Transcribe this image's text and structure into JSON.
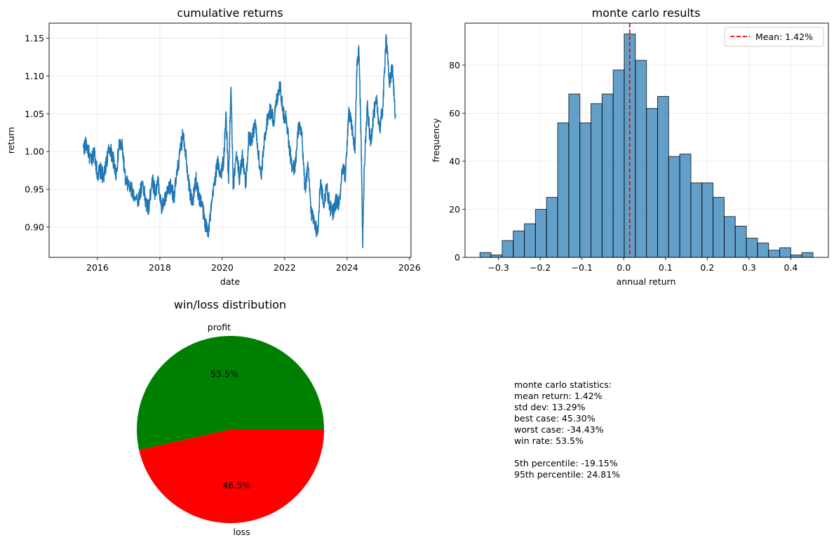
{
  "chart_data": [
    {
      "type": "line",
      "title": "cumulative returns",
      "xlabel": "date",
      "ylabel": "return",
      "xlim": [
        2014.45,
        2026.05
      ],
      "ylim": [
        0.86,
        1.17
      ],
      "xticks": [
        2016,
        2018,
        2020,
        2022,
        2024,
        2026
      ],
      "yticks": [
        0.9,
        0.95,
        1.0,
        1.05,
        1.1,
        1.15
      ],
      "xtick_labels": [
        "2016",
        "2018",
        "2020",
        "2022",
        "2024",
        "2026"
      ],
      "ytick_labels": [
        "0.90",
        "0.95",
        "1.00",
        "1.05",
        "1.10",
        "1.15"
      ],
      "grid": true,
      "color": "#1f77b4",
      "series": [
        {
          "x": [
            2015.55,
            2015.65,
            2015.8,
            2015.9,
            2016.0,
            2016.1,
            2016.2,
            2016.3,
            2016.4,
            2016.5,
            2016.6,
            2016.7,
            2016.8,
            2016.9,
            2017.0,
            2017.15,
            2017.3,
            2017.45,
            2017.55,
            2017.65,
            2017.75,
            2017.85,
            2017.95,
            2018.05,
            2018.15,
            2018.25,
            2018.35,
            2018.45,
            2018.55,
            2018.65,
            2018.75,
            2018.85,
            2018.95,
            2019.05,
            2019.15,
            2019.25,
            2019.35,
            2019.45,
            2019.55,
            2019.65,
            2019.75,
            2019.85,
            2019.95,
            2020.05,
            2020.12,
            2020.2,
            2020.28,
            2020.35,
            2020.45,
            2020.55,
            2020.65,
            2020.75,
            2020.85,
            2020.95,
            2021.05,
            2021.15,
            2021.25,
            2021.35,
            2021.45,
            2021.55,
            2021.65,
            2021.75,
            2021.85,
            2021.95,
            2022.05,
            2022.15,
            2022.25,
            2022.35,
            2022.45,
            2022.55,
            2022.65,
            2022.75,
            2022.85,
            2022.95,
            2023.05,
            2023.15,
            2023.25,
            2023.35,
            2023.45,
            2023.55,
            2023.65,
            2023.75,
            2023.85,
            2023.95,
            2024.05,
            2024.15,
            2024.25,
            2024.32,
            2024.38,
            2024.45,
            2024.5,
            2024.55,
            2024.65,
            2024.75,
            2024.85,
            2024.95,
            2025.05,
            2025.15,
            2025.25,
            2025.35,
            2025.45,
            2025.55
          ],
          "y": [
            1.005,
            1.01,
            0.985,
            1.0,
            0.97,
            0.975,
            0.965,
            0.99,
            1.005,
            0.99,
            0.97,
            1.01,
            1.005,
            0.96,
            0.955,
            0.945,
            0.935,
            0.96,
            0.93,
            0.925,
            0.965,
            0.945,
            0.96,
            0.925,
            0.935,
            0.945,
            0.955,
            0.94,
            0.97,
            1.0,
            1.025,
            0.99,
            0.95,
            0.93,
            0.965,
            0.94,
            0.93,
            0.905,
            0.895,
            0.925,
            0.96,
            0.985,
            0.97,
            0.99,
            1.05,
            0.96,
            1.085,
            0.95,
            1.0,
            0.965,
            0.995,
            0.955,
            1.02,
            1.015,
            1.04,
            1.0,
            0.965,
            1.015,
            1.045,
            1.055,
            1.04,
            1.07,
            1.09,
            1.05,
            1.045,
            1.005,
            0.975,
            0.985,
            1.035,
            1.02,
            0.95,
            0.98,
            0.92,
            0.91,
            0.89,
            0.96,
            0.93,
            0.955,
            0.925,
            0.92,
            0.935,
            0.93,
            0.975,
            0.97,
            1.05,
            1.035,
            1.0,
            1.12,
            1.13,
            1.02,
            0.875,
            0.98,
            1.06,
            1.01,
            1.05,
            1.065,
            1.03,
            1.06,
            1.155,
            1.09,
            1.11,
            1.05
          ]
        }
      ]
    },
    {
      "type": "bar",
      "subtype": "histogram",
      "title": "monte carlo results",
      "xlabel": "annual return",
      "ylabel": "frequency",
      "xlim": [
        -0.38,
        0.49
      ],
      "ylim": [
        0,
        97.5
      ],
      "xticks": [
        -0.3,
        -0.2,
        -0.1,
        0.0,
        0.1,
        0.2,
        0.3,
        0.4
      ],
      "xtick_labels": [
        "−0.3",
        "−0.2",
        "−0.1",
        "0.0",
        "0.1",
        "0.2",
        "0.3",
        "0.4"
      ],
      "yticks": [
        0,
        20,
        40,
        60,
        80
      ],
      "ytick_labels": [
        "0",
        "20",
        "40",
        "60",
        "80"
      ],
      "grid": true,
      "bin_start": -0.3443,
      "bin_width": 0.02658,
      "values": [
        2,
        1,
        7,
        11,
        14,
        20,
        25,
        56,
        68,
        56,
        64,
        68,
        78,
        93,
        82,
        62,
        67,
        42,
        43,
        31,
        31,
        25,
        17,
        13,
        8,
        6,
        3,
        4,
        1,
        2
      ],
      "bar_color": "#1f77b4",
      "bar_alpha": 0.7,
      "mean_line": {
        "x": 0.0142,
        "color": "#ff0000",
        "style": "dashed"
      },
      "legend": {
        "entries": [
          "Mean: 1.42%"
        ],
        "placement": "top-right"
      }
    },
    {
      "type": "pie",
      "title": "win/loss distribution",
      "labels": [
        "profit",
        "loss"
      ],
      "values": [
        53.5,
        46.5
      ],
      "pct_labels": [
        "53.5%",
        "46.5%"
      ],
      "colors": [
        "#008000",
        "#ff0000"
      ]
    }
  ],
  "stats_text": {
    "lines": [
      "monte carlo statistics:",
      "mean return: 1.42%",
      "std dev: 13.29%",
      "best case: 45.30%",
      "worst case: -34.43%",
      "win rate: 53.5%",
      "",
      "5th percentile: -19.15%",
      "95th percentile: 24.81%"
    ]
  }
}
